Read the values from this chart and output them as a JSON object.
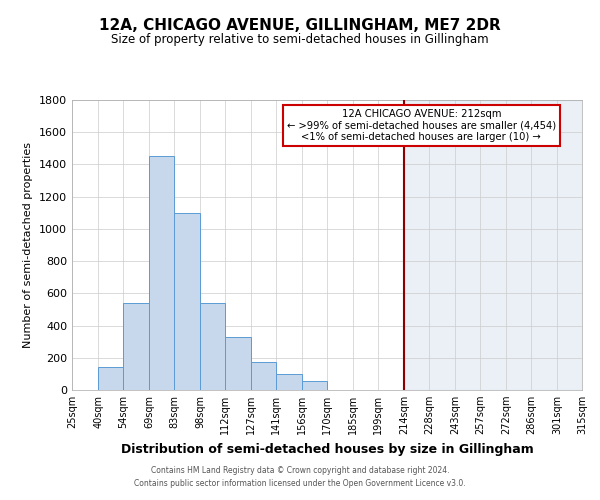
{
  "title": "12A, CHICAGO AVENUE, GILLINGHAM, ME7 2DR",
  "subtitle": "Size of property relative to semi-detached houses in Gillingham",
  "xlabel": "Distribution of semi-detached houses by size in Gillingham",
  "ylabel": "Number of semi-detached properties",
  "bin_edges": [
    25,
    40,
    54,
    69,
    83,
    98,
    112,
    127,
    141,
    156,
    170,
    185,
    199,
    214,
    228,
    243,
    257,
    272,
    286,
    301,
    315
  ],
  "bar_heights": [
    0,
    140,
    540,
    1450,
    1100,
    540,
    330,
    175,
    100,
    55,
    0,
    0,
    0,
    0,
    0,
    0,
    0,
    0,
    0,
    0
  ],
  "bar_color": "#c8d8ec",
  "bar_edge_color": "#5b9bd5",
  "vline_x": 214,
  "vline_color": "#8b0000",
  "annotation_title": "12A CHICAGO AVENUE: 212sqm",
  "annotation_line1": "← >99% of semi-detached houses are smaller (4,454)",
  "annotation_line2": "<1% of semi-detached houses are larger (10) →",
  "annotation_box_color": "#ffffff",
  "annotation_box_edge_color": "#cc0000",
  "bg_color": "#ffffff",
  "grid_color": "#cccccc",
  "ylim": [
    0,
    1800
  ],
  "tick_labels": [
    "25sqm",
    "40sqm",
    "54sqm",
    "69sqm",
    "83sqm",
    "98sqm",
    "112sqm",
    "127sqm",
    "141sqm",
    "156sqm",
    "170sqm",
    "185sqm",
    "199sqm",
    "214sqm",
    "228sqm",
    "243sqm",
    "257sqm",
    "272sqm",
    "286sqm",
    "301sqm",
    "315sqm"
  ],
  "footer1": "Contains HM Land Registry data © Crown copyright and database right 2024.",
  "footer2": "Contains public sector information licensed under the Open Government Licence v3.0.",
  "span_color": "#dce6f1",
  "span_alpha": 0.6
}
